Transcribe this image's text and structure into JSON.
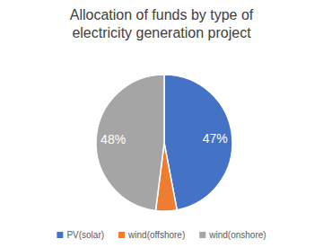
{
  "chart_data": {
    "type": "pie",
    "title": "Allocation of funds by type of electricity generation project",
    "categories": [
      "PV(solar)",
      "wind(offshore)",
      "wind(onshore)"
    ],
    "values": [
      47,
      5,
      48
    ],
    "value_labels": [
      "47%",
      null,
      "48%"
    ],
    "colors": [
      "#4472c4",
      "#ed7d31",
      "#a5a5a5"
    ],
    "data_labels": true,
    "legend": "bottom"
  }
}
